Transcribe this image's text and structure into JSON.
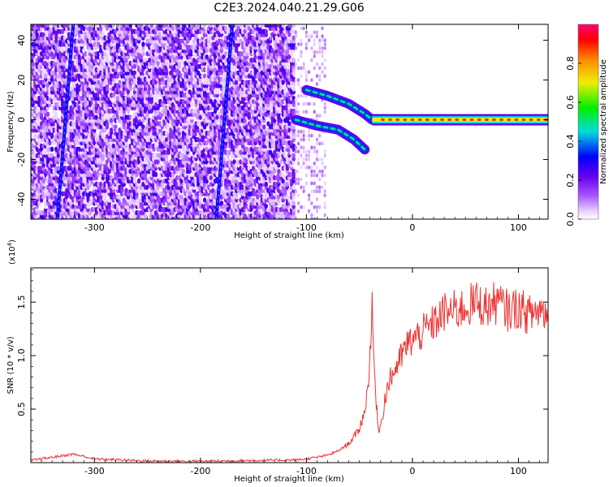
{
  "figure": {
    "title": "C2E3.2024.040.21.29.G06"
  },
  "chart_data": [
    {
      "type": "heatmap",
      "xlabel": "Height of straight line (km)",
      "ylabel": "Frequency (Hz)",
      "xlim": [
        -360,
        128
      ],
      "ylim": [
        -50,
        48
      ],
      "xticks": [
        -300,
        -200,
        -100,
        0,
        100
      ],
      "yticks": [
        -40,
        -20,
        0,
        20,
        40
      ],
      "colorbar": {
        "label": "Normalized spectral amplitude",
        "range": [
          0,
          1
        ],
        "ticks": [
          "0.0",
          "0.2",
          "0.4",
          "0.6",
          "0.8"
        ],
        "colormap": "rainbow (white-purple-blue-cyan-green-yellow-red)"
      },
      "features": {
        "noise_region_x": [
          -360,
          -110
        ],
        "diagonal_streaks": [
          {
            "x_top": -320,
            "x_bottom": -335,
            "value": 0.3
          },
          {
            "x_top": -170,
            "x_bottom": -185,
            "value": 0.3
          }
        ],
        "upper_branch": [
          [
            -100,
            15
          ],
          [
            -80,
            12
          ],
          [
            -60,
            8
          ],
          [
            -45,
            3
          ],
          [
            -38,
            0
          ]
        ],
        "lower_branch": [
          [
            -110,
            0
          ],
          [
            -90,
            -3
          ],
          [
            -70,
            -5
          ],
          [
            -55,
            -10
          ],
          [
            -45,
            -15
          ]
        ],
        "tone_line": {
          "x_range": [
            -38,
            128
          ],
          "y": 0,
          "peak_value": 0.9
        }
      }
    },
    {
      "type": "line",
      "title": "",
      "xlabel": "Height of straight line (km)",
      "ylabel": "SNR (10 * v/v)",
      "yscale_label": "(x10",
      "yscale_exp": "4",
      "xlim": [
        -360,
        128
      ],
      "ylim": [
        0,
        18200
      ],
      "xticks": [
        -300,
        -200,
        -100,
        0,
        100
      ],
      "yticks": [
        5000,
        10000,
        15000
      ],
      "ytick_labels": [
        "0.5",
        "1.0",
        "1.5"
      ],
      "series": [
        {
          "color": "#ee3333",
          "x": [
            -360,
            -340,
            -320,
            -300,
            -250,
            -200,
            -150,
            -110,
            -100,
            -90,
            -80,
            -70,
            -60,
            -55,
            -50,
            -45,
            -42,
            -40,
            -38,
            -36,
            -34,
            -33,
            -32,
            -30,
            -28,
            -26,
            -24,
            -22,
            -20,
            -15,
            -10,
            -5,
            0,
            5,
            10,
            20,
            30,
            40,
            50,
            60,
            70,
            80,
            90,
            100,
            110,
            120,
            128
          ],
          "y": [
            200,
            500,
            800,
            350,
            150,
            120,
            200,
            250,
            350,
            500,
            700,
            1100,
            1800,
            2400,
            3200,
            4800,
            7000,
            10500,
            14000,
            9000,
            5000,
            4500,
            3000,
            3500,
            4500,
            6000,
            6800,
            7500,
            8000,
            9000,
            10000,
            11000,
            11500,
            11800,
            12200,
            13000,
            14000,
            14200,
            14500,
            15000,
            14500,
            15000,
            14200,
            14500,
            13800,
            14300,
            14000
          ]
        }
      ]
    }
  ]
}
